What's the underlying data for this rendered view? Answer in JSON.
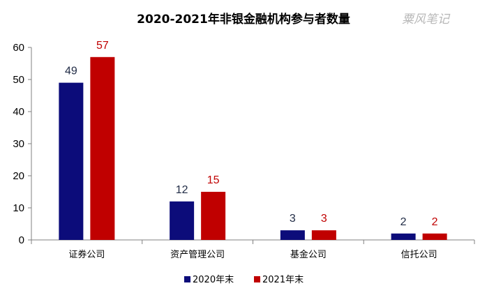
{
  "chart_data": {
    "type": "bar",
    "title": "2020-2021年非银金融机构参与者数量",
    "watermark": "粟风笔记",
    "categories": [
      "证券公司",
      "资产管理公司",
      "基金公司",
      "信托公司"
    ],
    "series": [
      {
        "name": "2020年末",
        "color": "#0c0c7a",
        "values": [
          49,
          12,
          3,
          2
        ]
      },
      {
        "name": "2021年末",
        "color": "#c00000",
        "values": [
          57,
          15,
          3,
          2
        ]
      }
    ],
    "yticks": [
      0,
      10,
      20,
      30,
      40,
      50,
      60
    ],
    "ylim": [
      0,
      60
    ],
    "legend": "bottom",
    "grid": false
  }
}
